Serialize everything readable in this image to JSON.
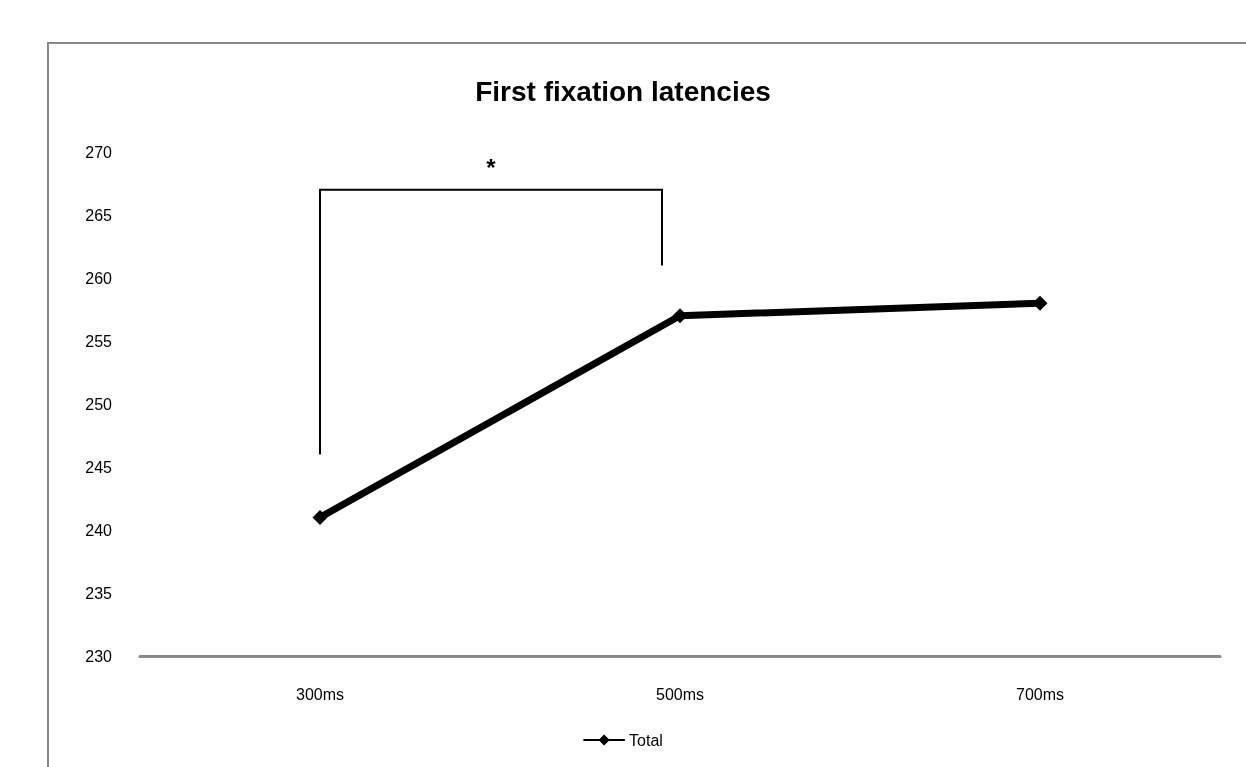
{
  "chart_data": {
    "type": "line",
    "title": "First fixation latencies",
    "categories": [
      "300ms",
      "500ms",
      "700ms"
    ],
    "series": [
      {
        "name": "Total",
        "color": "#000000",
        "values": [
          241,
          257,
          258
        ]
      }
    ],
    "ylim": [
      230,
      270
    ],
    "yticks": [
      230,
      235,
      240,
      245,
      250,
      255,
      260,
      265,
      270
    ],
    "grid": false,
    "legend": "bottom",
    "marker": "diamond",
    "line_style": "solid",
    "annotations": [
      "*"
    ]
  }
}
